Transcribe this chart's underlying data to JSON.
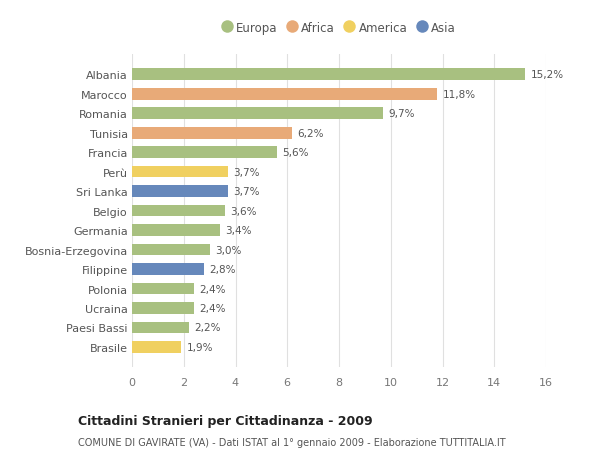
{
  "categories": [
    "Albania",
    "Marocco",
    "Romania",
    "Tunisia",
    "Francia",
    "Perù",
    "Sri Lanka",
    "Belgio",
    "Germania",
    "Bosnia-Erzegovina",
    "Filippine",
    "Polonia",
    "Ucraina",
    "Paesi Bassi",
    "Brasile"
  ],
  "values": [
    15.2,
    11.8,
    9.7,
    6.2,
    5.6,
    3.7,
    3.7,
    3.6,
    3.4,
    3.0,
    2.8,
    2.4,
    2.4,
    2.2,
    1.9
  ],
  "labels": [
    "15,2%",
    "11,8%",
    "9,7%",
    "6,2%",
    "5,6%",
    "3,7%",
    "3,7%",
    "3,6%",
    "3,4%",
    "3,0%",
    "2,8%",
    "2,4%",
    "2,4%",
    "2,2%",
    "1,9%"
  ],
  "continents": [
    "Europa",
    "Africa",
    "Europa",
    "Africa",
    "Europa",
    "America",
    "Asia",
    "Europa",
    "Europa",
    "Europa",
    "Asia",
    "Europa",
    "Europa",
    "Europa",
    "America"
  ],
  "continent_colors": {
    "Europa": "#a8c080",
    "Africa": "#e8aa78",
    "America": "#f0d060",
    "Asia": "#6688bb"
  },
  "legend_order": [
    "Europa",
    "Africa",
    "America",
    "Asia"
  ],
  "bg_color": "#ffffff",
  "grid_color": "#e0e0e0",
  "title": "Cittadini Stranieri per Cittadinanza - 2009",
  "subtitle": "COMUNE DI GAVIRATE (VA) - Dati ISTAT al 1° gennaio 2009 - Elaborazione TUTTITALIA.IT",
  "xlim": [
    0,
    16
  ],
  "xticks": [
    0,
    2,
    4,
    6,
    8,
    10,
    12,
    14,
    16
  ]
}
